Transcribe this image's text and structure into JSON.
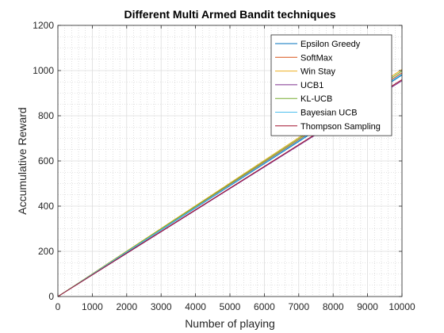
{
  "chart_data": {
    "type": "line",
    "title": "Different Multi Armed Bandit techniques",
    "xlabel": "Number of playing",
    "ylabel": "Accumulative Reward",
    "xlim": [
      0,
      10000
    ],
    "ylim": [
      0,
      1200
    ],
    "xticks": [
      0,
      1000,
      2000,
      3000,
      4000,
      5000,
      6000,
      7000,
      8000,
      9000,
      10000
    ],
    "yticks": [
      0,
      200,
      400,
      600,
      800,
      1000,
      1200
    ],
    "grid": "major-and-minor",
    "legend_position": "top-right",
    "series": [
      {
        "name": "Epsilon Greedy",
        "color": "#0072BD",
        "x": [
          0,
          10000
        ],
        "y": [
          0,
          980
        ]
      },
      {
        "name": "SoftMax",
        "color": "#D95319",
        "x": [
          0,
          10000
        ],
        "y": [
          0,
          990
        ]
      },
      {
        "name": "Win Stay",
        "color": "#EDB120",
        "x": [
          0,
          10000
        ],
        "y": [
          0,
          1005
        ]
      },
      {
        "name": "UCB1",
        "color": "#7E2F8E",
        "x": [
          0,
          10000
        ],
        "y": [
          0,
          955
        ]
      },
      {
        "name": "KL-UCB",
        "color": "#77AC30",
        "x": [
          0,
          10000
        ],
        "y": [
          0,
          998
        ]
      },
      {
        "name": "Bayesian UCB",
        "color": "#4DBEEE",
        "x": [
          0,
          10000
        ],
        "y": [
          0,
          985
        ]
      },
      {
        "name": "Thompson Sampling",
        "color": "#A2142F",
        "x": [
          0,
          10000
        ],
        "y": [
          0,
          960
        ]
      }
    ]
  }
}
